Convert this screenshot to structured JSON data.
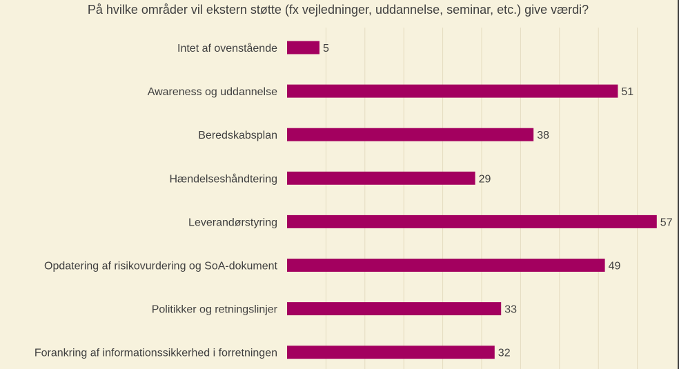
{
  "chart_data": {
    "type": "bar",
    "orientation": "horizontal",
    "title": "På hvilke områder vil ekstern støtte (fx vejledninger, uddannelse, seminar, etc.) give værdi?",
    "categories": [
      "Intet af ovenstående",
      "Awareness og uddannelse",
      "Beredskabsplan",
      "Hændelseshåndtering",
      "Leverandørstyring",
      "Opdatering af risikovurdering og SoA-dokument",
      "Politikker og retningslinjer",
      "Forankring af informationssikkerhed i forretningen"
    ],
    "values": [
      5,
      51,
      38,
      29,
      57,
      49,
      33,
      32
    ],
    "xlim": [
      0,
      60
    ],
    "grid": true,
    "data_labels": true,
    "bar_color": "#a3005f",
    "grid_color": "#e4dcc0",
    "background_color": "#f7f2dd"
  }
}
